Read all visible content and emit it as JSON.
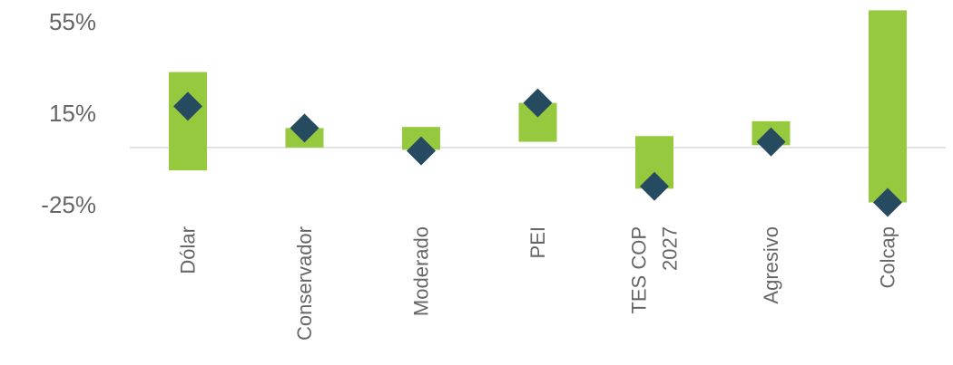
{
  "chart_data": {
    "type": "bar",
    "subtype": "floating-range-with-marker",
    "title": "",
    "xlabel": "",
    "ylabel": "",
    "ylim": [
      -25,
      55
    ],
    "yticks": [
      {
        "value": 55,
        "label": "55%"
      },
      {
        "value": 15,
        "label": "15%"
      },
      {
        "value": -25,
        "label": "-25%"
      }
    ],
    "grid": false,
    "legend": "none",
    "bar_color": "#96C93D",
    "marker_color": "#264A60",
    "marker_shape": "diamond",
    "categories": [
      {
        "lines": [
          "Dólar"
        ],
        "range": [
          -10,
          33
        ],
        "marker": 18
      },
      {
        "lines": [
          "Conservador"
        ],
        "range": [
          0,
          8.5
        ],
        "marker": 8.5
      },
      {
        "lines": [
          "Moderado"
        ],
        "range": [
          -1,
          9
        ],
        "marker": -1.5
      },
      {
        "lines": [
          "PEI"
        ],
        "range": [
          2.5,
          19.5
        ],
        "marker": 19.5
      },
      {
        "lines": [
          "TES COP",
          "2027"
        ],
        "range": [
          -18,
          5
        ],
        "marker": -17
      },
      {
        "lines": [
          "Agresivo"
        ],
        "range": [
          1,
          11.5
        ],
        "marker": 2.5
      },
      {
        "lines": [
          "Colcap"
        ],
        "range": [
          -24,
          60
        ],
        "marker": -24
      }
    ]
  }
}
